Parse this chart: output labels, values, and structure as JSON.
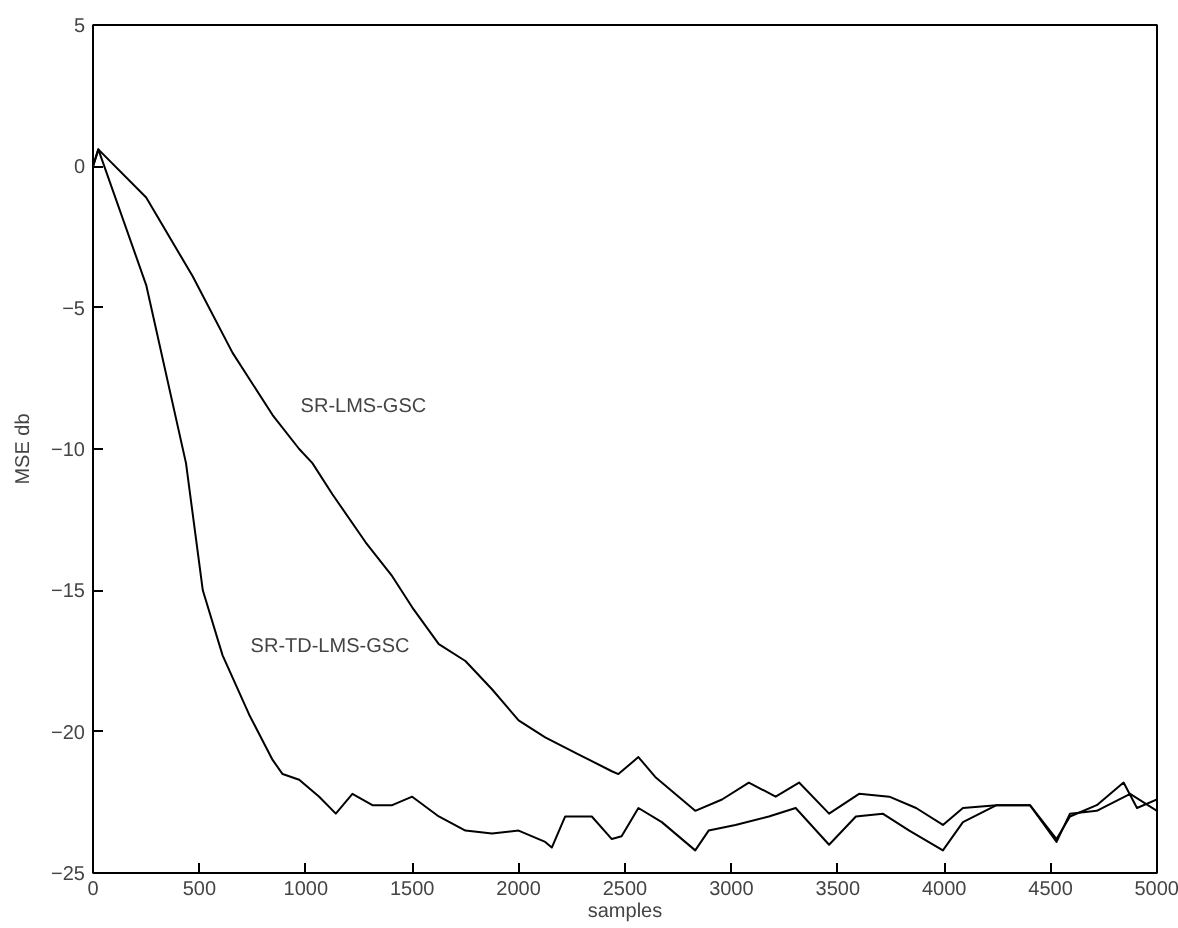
{
  "chart_data": {
    "type": "line",
    "xlabel": "samples",
    "ylabel": "MSE db",
    "xlim": [
      0,
      5000
    ],
    "ylim": [
      -25,
      5
    ],
    "xticks": [
      0,
      500,
      1000,
      1500,
      2000,
      2500,
      3000,
      3500,
      4000,
      4500,
      5000
    ],
    "yticks": [
      -25,
      -20,
      -15,
      -10,
      -5,
      0,
      5
    ],
    "grid": false,
    "marker": "none",
    "line_style": "solid",
    "series": [
      {
        "name": "SR-LMS-GSC",
        "color": "#000000",
        "x": [
          0,
          25,
          250,
          469,
          656,
          844,
          969,
          1031,
          1125,
          1281,
          1406,
          1500,
          1625,
          1750,
          1875,
          2000,
          2125,
          2281,
          2438,
          2469,
          2563,
          2642,
          2830,
          2956,
          3082,
          3208,
          3318,
          3459,
          3600,
          3742,
          3868,
          3994,
          4088,
          4246,
          4403,
          4528,
          4591,
          4717,
          4843,
          4906,
          5000
        ],
        "values": [
          0,
          0.6,
          -1.1,
          -3.9,
          -6.6,
          -8.8,
          -10.0,
          -10.5,
          -11.6,
          -13.3,
          -14.5,
          -15.6,
          -16.9,
          -17.5,
          -18.5,
          -19.6,
          -20.2,
          -20.8,
          -21.4,
          -21.5,
          -20.9,
          -21.6,
          -22.8,
          -22.4,
          -21.8,
          -22.3,
          -21.8,
          -22.9,
          -22.2,
          -22.3,
          -22.7,
          -23.3,
          -22.7,
          -22.6,
          -22.6,
          -23.8,
          -23.0,
          -22.6,
          -21.8,
          -22.7,
          -22.4
        ]
      },
      {
        "name": "SR-TD-LMS-GSC",
        "color": "#000000",
        "x": [
          0,
          25,
          250,
          437,
          516,
          609,
          734,
          844,
          891,
          969,
          1063,
          1141,
          1219,
          1313,
          1406,
          1500,
          1625,
          1750,
          1875,
          2000,
          2125,
          2156,
          2219,
          2344,
          2438,
          2484,
          2563,
          2673,
          2830,
          2893,
          3019,
          3176,
          3302,
          3459,
          3585,
          3711,
          3836,
          3994,
          4088,
          4246,
          4403,
          4528,
          4591,
          4717,
          4874,
          5000
        ],
        "values": [
          0,
          0.6,
          -4.2,
          -10.5,
          -15.0,
          -17.3,
          -19.4,
          -21.0,
          -21.5,
          -21.7,
          -22.3,
          -22.9,
          -22.2,
          -22.6,
          -22.6,
          -22.3,
          -23.0,
          -23.5,
          -23.6,
          -23.5,
          -23.9,
          -24.1,
          -23.0,
          -23.0,
          -23.8,
          -23.7,
          -22.7,
          -23.2,
          -24.2,
          -23.5,
          -23.3,
          -23.0,
          -22.7,
          -24.0,
          -23.0,
          -22.9,
          -23.5,
          -24.2,
          -23.2,
          -22.6,
          -22.6,
          -23.9,
          -22.9,
          -22.8,
          -22.2,
          -22.8
        ]
      }
    ]
  }
}
